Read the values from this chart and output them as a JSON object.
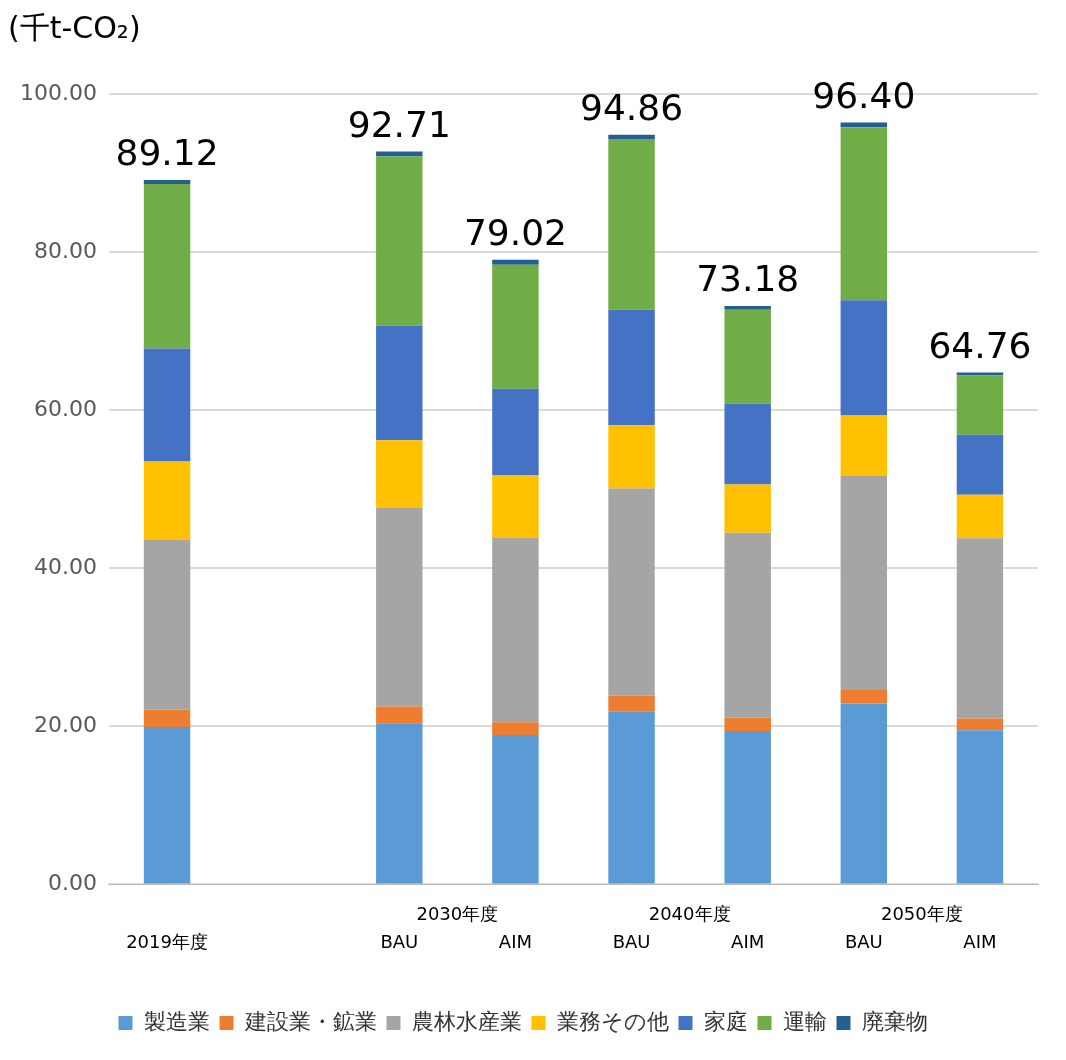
{
  "chart_data": {
    "type": "bar",
    "stacked": true,
    "ylabel": "(千t-CO₂)",
    "categories": [
      "2019年度",
      null,
      "BAU",
      "AIM",
      "BAU",
      "AIM",
      "BAU",
      "AIM"
    ],
    "annotations": [
      "2030年度",
      "2040年度",
      "2050年度"
    ],
    "series": [
      {
        "name": "製造業",
        "color": "#5b9bd5",
        "values": [
          19.9,
          null,
          20.4,
          18.9,
          21.9,
          19.4,
          22.9,
          19.5
        ]
      },
      {
        "name": "建設業・鉱業",
        "color": "#ed7d31",
        "values": [
          2.2,
          null,
          2.1,
          1.6,
          2.0,
          1.7,
          1.7,
          1.5
        ]
      },
      {
        "name": "農林水産業",
        "color": "#a5a5a5",
        "values": [
          21.5,
          null,
          25.2,
          23.4,
          26.2,
          23.4,
          27.1,
          22.8
        ]
      },
      {
        "name": "業務その他",
        "color": "#ffc000",
        "values": [
          9.9,
          null,
          8.5,
          7.9,
          8.0,
          6.1,
          7.7,
          5.5
        ]
      },
      {
        "name": "家庭",
        "color": "#4472c4",
        "values": [
          14.3,
          null,
          14.5,
          10.9,
          14.6,
          10.2,
          14.5,
          7.6
        ]
      },
      {
        "name": "運輸",
        "color": "#70ad47",
        "values": [
          20.8,
          null,
          21.4,
          15.7,
          21.6,
          11.9,
          21.9,
          7.5
        ]
      },
      {
        "name": "廃棄物",
        "color": "#255e91",
        "values": [
          0.52,
          null,
          0.61,
          0.62,
          0.56,
          0.48,
          0.6,
          0.36
        ]
      }
    ],
    "totals": [
      "89.12",
      null,
      "92.71",
      "79.02",
      "94.86",
      "73.18",
      "96.40",
      "64.76"
    ],
    "ylim": [
      0,
      100
    ],
    "yticks": [
      {
        "value": 0,
        "label": "0.00"
      },
      {
        "value": 20,
        "label": "20.00"
      },
      {
        "value": 40,
        "label": "40.00"
      },
      {
        "value": 60,
        "label": "60.00"
      },
      {
        "value": 80,
        "label": "80.00"
      },
      {
        "value": 100,
        "label": "100.00"
      }
    ],
    "grid": "y",
    "legend": "bottom"
  }
}
